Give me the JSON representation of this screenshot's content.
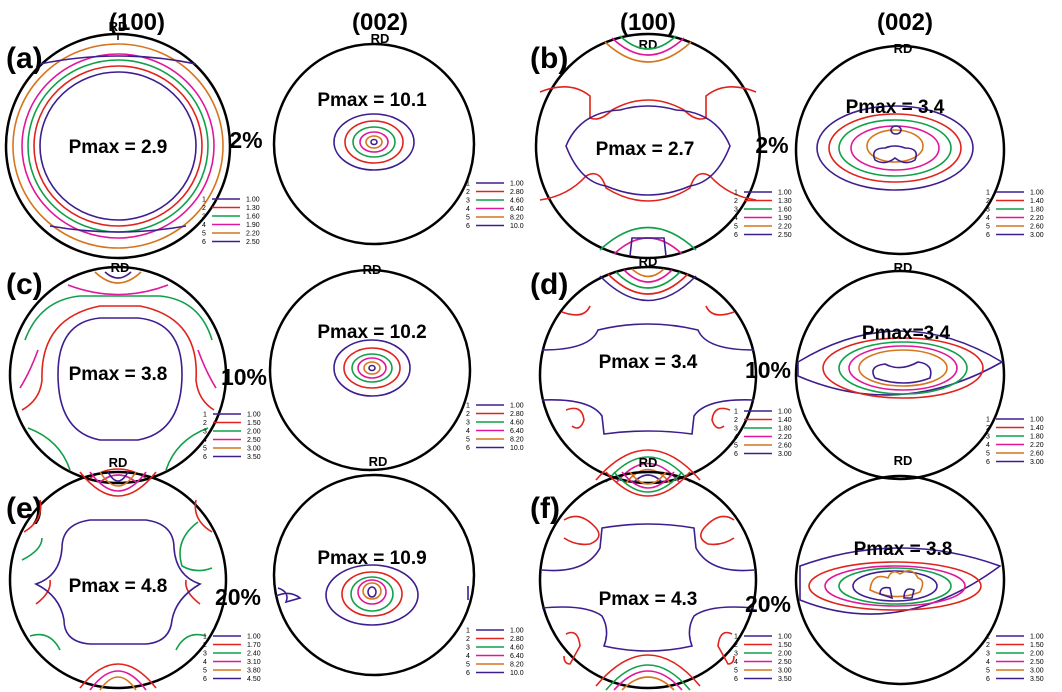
{
  "column_headers": [
    "(100)",
    "(002)",
    "(100)",
    "(002)"
  ],
  "rd_label": "RD",
  "legend_indices": [
    "1",
    "2",
    "3",
    "4",
    "5",
    "6"
  ],
  "legend_colors": [
    "#3d1e8f",
    "#e0231c",
    "#11a04a",
    "#e0179a",
    "#d6751e",
    "#3d1e8f"
  ],
  "panels": [
    {
      "label": "(a)",
      "strain": "2%",
      "pf100": {
        "pmax": "Pmax = 2.9",
        "legend": [
          "1.00",
          "1.30",
          "1.60",
          "1.90",
          "2.20",
          "2.50"
        ]
      },
      "pf002": {
        "pmax": "Pmax = 10.1",
        "legend": [
          "1.00",
          "2.80",
          "4.60",
          "6.40",
          "8.20",
          "10.0"
        ]
      }
    },
    {
      "label": "(b)",
      "strain": "2%",
      "pf100": {
        "pmax": "Pmax = 2.7",
        "legend": [
          "1.00",
          "1.30",
          "1.60",
          "1.90",
          "2.20",
          "2.50"
        ]
      },
      "pf002": {
        "pmax": "Pmax = 3.4",
        "legend": [
          "1.00",
          "1.40",
          "1.80",
          "2.20",
          "2.60",
          "3.00"
        ]
      }
    },
    {
      "label": "(c)",
      "strain": "10%",
      "pf100": {
        "pmax": "Pmax = 3.8",
        "legend": [
          "1.00",
          "1.50",
          "2.00",
          "2.50",
          "3.00",
          "3.50"
        ]
      },
      "pf002": {
        "pmax": "Pmax = 10.2",
        "legend": [
          "1.00",
          "2.80",
          "4.60",
          "6.40",
          "8.20",
          "10.0"
        ]
      }
    },
    {
      "label": "(d)",
      "strain": "10%",
      "pf100": {
        "pmax": "Pmax = 3.4",
        "legend": [
          "1.00",
          "1.40",
          "1.80",
          "2.20",
          "2.60",
          "3.00"
        ]
      },
      "pf002": {
        "pmax": "Pmax=3.4",
        "legend": [
          "1.00",
          "1.40",
          "1.80",
          "2.20",
          "2.60",
          "3.00"
        ]
      }
    },
    {
      "label": "(e)",
      "strain": "20%",
      "pf100": {
        "pmax": "Pmax = 4.8",
        "legend": [
          "1.00",
          "1.70",
          "2.40",
          "3.10",
          "3.80",
          "4.50"
        ]
      },
      "pf002": {
        "pmax": "Pmax = 10.9",
        "legend": [
          "1.00",
          "2.80",
          "4.60",
          "6.40",
          "8.20",
          "10.0"
        ]
      }
    },
    {
      "label": "(f)",
      "strain": "20%",
      "pf100": {
        "pmax": "Pmax = 4.3",
        "legend": [
          "1.00",
          "1.50",
          "2.00",
          "2.50",
          "3.00",
          "3.50"
        ]
      },
      "pf002": {
        "pmax": "Pmax = 3.8",
        "legend": [
          "1.00",
          "1.50",
          "2.00",
          "2.50",
          "3.00",
          "3.50"
        ]
      }
    }
  ]
}
